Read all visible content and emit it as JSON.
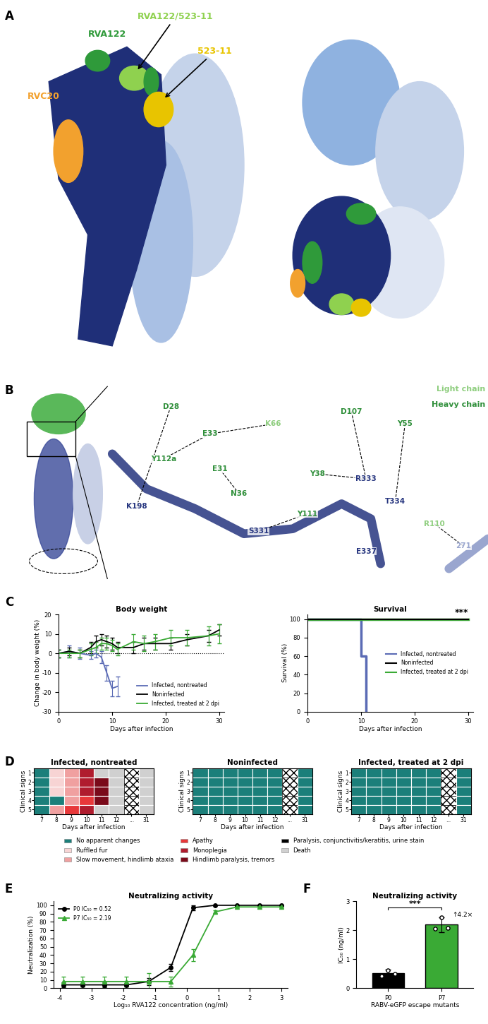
{
  "panel_labels": [
    "A",
    "B",
    "C",
    "D",
    "E",
    "F"
  ],
  "structure_panels": {
    "A": {
      "epitopes": [
        {
          "name": "RVA122/523-11",
          "color": "#8fd14f"
        },
        {
          "name": "RVA122",
          "color": "#2f9a3a"
        },
        {
          "name": "523-11",
          "color": "#e8c400"
        },
        {
          "name": "RVC20",
          "color": "#f2a12e"
        }
      ]
    },
    "B": {
      "chain_labels": [
        {
          "name": "Light chain",
          "color": "#8fce7f"
        },
        {
          "name": "Heavy chain",
          "color": "#2f8f3a"
        }
      ],
      "residues": [
        {
          "label": "D28",
          "color": "#2f8f3a"
        },
        {
          "label": "E33",
          "color": "#2f8f3a"
        },
        {
          "label": "K66",
          "color": "#8fce7f"
        },
        {
          "label": "Y112a",
          "color": "#2f8f3a"
        },
        {
          "label": "E31",
          "color": "#2f8f3a"
        },
        {
          "label": "N36",
          "color": "#2f8f3a"
        },
        {
          "label": "D107",
          "color": "#2f8f3a"
        },
        {
          "label": "Y55",
          "color": "#2f8f3a"
        },
        {
          "label": "Y38",
          "color": "#2f8f3a"
        },
        {
          "label": "R333",
          "color": "#26357f"
        },
        {
          "label": "Y111",
          "color": "#2f8f3a"
        },
        {
          "label": "S331",
          "color": "#26357f"
        },
        {
          "label": "T334",
          "color": "#26357f"
        },
        {
          "label": "E337",
          "color": "#26357f"
        },
        {
          "label": "K198",
          "color": "#26357f"
        },
        {
          "label": "R110",
          "color": "#8fce7f"
        },
        {
          "label": "271",
          "color": "#9aa6cf"
        }
      ]
    }
  },
  "chart_data": [
    {
      "type": "line",
      "title": "Body weight",
      "x_label": "Days after infection",
      "y_label": "Change in body weight (%)",
      "xlim": [
        0,
        31
      ],
      "xticks": [
        0,
        10,
        20,
        30
      ],
      "ylim": [
        -30,
        20
      ],
      "yticks": [
        -30,
        -20,
        -10,
        0,
        10,
        20
      ],
      "baseline": 0,
      "legend": "lower right",
      "series": [
        {
          "name": "Infected, nontreated",
          "color": "#5b6bb5",
          "x": [
            0,
            2,
            4,
            6,
            7,
            8,
            9,
            10,
            11
          ],
          "values": [
            0,
            1,
            0,
            -1,
            0,
            -2,
            -10,
            -18,
            -17
          ],
          "errors": [
            2,
            3,
            3,
            2,
            2,
            3,
            4,
            4,
            5
          ]
        },
        {
          "name": "Noninfected",
          "color": "#000000",
          "x": [
            0,
            2,
            4,
            6,
            7,
            8,
            9,
            10,
            11,
            14,
            16,
            18,
            21,
            24,
            28,
            30
          ],
          "values": [
            0,
            1,
            0,
            3,
            6,
            7,
            6,
            5,
            3,
            3,
            5,
            5,
            5,
            7,
            9,
            12
          ],
          "errors": [
            2,
            2,
            2,
            3,
            3,
            3,
            3,
            3,
            3,
            3,
            3,
            3,
            3,
            3,
            3,
            3
          ]
        },
        {
          "name": "Infected, treated at 2 dpi",
          "color": "#3aaa35",
          "x": [
            0,
            2,
            4,
            6,
            7,
            8,
            9,
            10,
            11,
            14,
            16,
            18,
            21,
            24,
            28,
            30
          ],
          "values": [
            0,
            0,
            0,
            2,
            3,
            5,
            5,
            4,
            2,
            6,
            5,
            6,
            8,
            8,
            9,
            10
          ],
          "errors": [
            2,
            2,
            2,
            3,
            3,
            3,
            3,
            3,
            3,
            4,
            4,
            4,
            4,
            4,
            5,
            5
          ]
        }
      ]
    },
    {
      "type": "step",
      "title": "Survival",
      "x_label": "Days after infection",
      "y_label": "Survival (%)",
      "xlim": [
        0,
        31
      ],
      "xticks": [
        0,
        10,
        20,
        30
      ],
      "ylim": [
        0,
        105
      ],
      "yticks": [
        0,
        20,
        40,
        60,
        80,
        100
      ],
      "annotation": "***",
      "legend": "center right",
      "series": [
        {
          "name": "Infected, nontreated",
          "color": "#5b6bb5",
          "x": [
            0,
            10,
            11
          ],
          "values": [
            100,
            60,
            0
          ]
        },
        {
          "name": "Noninfected",
          "color": "#000000",
          "x": [
            0,
            30
          ],
          "values": [
            100,
            100
          ]
        },
        {
          "name": "Infected, treated at 2 dpi",
          "color": "#3aaa35",
          "x": [
            0,
            30
          ],
          "values": [
            100,
            100
          ]
        }
      ]
    },
    {
      "type": "heatmap",
      "title": "Infected, nontreated",
      "x_label": "Days after infection",
      "y_label": "Clinical signs",
      "x": [
        "7",
        "8",
        "9",
        "10",
        "11",
        "12",
        "...",
        "31"
      ],
      "y": [
        "1",
        "2",
        "3",
        "4",
        "5"
      ],
      "cells": [
        [
          0,
          1,
          2,
          4,
          7,
          7,
          null,
          7
        ],
        [
          0,
          1,
          2,
          4,
          5,
          7,
          null,
          7
        ],
        [
          0,
          1,
          2,
          4,
          5,
          7,
          null,
          7
        ],
        [
          0,
          0,
          2,
          3,
          5,
          7,
          null,
          7
        ],
        [
          0,
          2,
          3,
          4,
          7,
          7,
          null,
          7
        ]
      ]
    },
    {
      "type": "heatmap",
      "title": "Noninfected",
      "x_label": "Days after infection",
      "y_label": "Clinical signs",
      "x": [
        "7",
        "8",
        "9",
        "10",
        "11",
        "12",
        "...",
        "31"
      ],
      "y": [
        "1",
        "2",
        "3",
        "4",
        "5"
      ],
      "cells": [
        [
          0,
          0,
          0,
          0,
          0,
          0,
          null,
          0
        ],
        [
          0,
          0,
          0,
          0,
          0,
          0,
          null,
          0
        ],
        [
          0,
          0,
          0,
          0,
          0,
          0,
          null,
          0
        ],
        [
          0,
          0,
          0,
          0,
          0,
          0,
          null,
          0
        ],
        [
          0,
          0,
          0,
          0,
          0,
          0,
          null,
          0
        ]
      ]
    },
    {
      "type": "heatmap",
      "title": "Infected, treated at 2 dpi",
      "x_label": "Days after infection",
      "y_label": "Clinical signs",
      "x": [
        "7",
        "8",
        "9",
        "10",
        "11",
        "12",
        "...",
        "31"
      ],
      "y": [
        "1",
        "2",
        "3",
        "4",
        "5"
      ],
      "cells": [
        [
          0,
          0,
          0,
          0,
          0,
          0,
          null,
          0
        ],
        [
          0,
          0,
          0,
          0,
          0,
          0,
          null,
          0
        ],
        [
          0,
          0,
          0,
          0,
          0,
          0,
          null,
          0
        ],
        [
          0,
          0,
          0,
          0,
          0,
          0,
          null,
          0
        ],
        [
          0,
          0,
          0,
          0,
          0,
          0,
          null,
          0
        ]
      ]
    },
    {
      "type": "legend",
      "items": [
        {
          "name": "No apparent changes",
          "color": "#1b7f7a"
        },
        {
          "name": "Ruffled fur",
          "color": "#f7d4d4"
        },
        {
          "name": "Slow movement, hindlimb ataxia",
          "color": "#f0a0a0"
        },
        {
          "name": "Apathy",
          "color": "#e8383a"
        },
        {
          "name": "Monoplegia",
          "color": "#b01c2e"
        },
        {
          "name": "Hindlimb paralysis, tremors",
          "color": "#7a0a1a"
        },
        {
          "name": "Paralysis, conjunctivitis/keratitis, urine stain",
          "color": "#000000"
        },
        {
          "name": "Death",
          "color": "#d0d0d0"
        }
      ]
    },
    {
      "type": "line",
      "title": "Neutralizing activity",
      "x_label": "Log₁₀ RVA122 concentration (ng/ml)",
      "y_label": "Neutralization (%)",
      "xlim": [
        -4.2,
        3.2
      ],
      "xticks": [
        -4,
        -3,
        -2,
        -1,
        0,
        1,
        2,
        3
      ],
      "ylim": [
        0,
        105
      ],
      "yticks": [
        0,
        10,
        20,
        30,
        40,
        50,
        60,
        70,
        80,
        90,
        100
      ],
      "legend": "upper left",
      "series": [
        {
          "name": "P0 IC₅₀ = 0.52",
          "color": "#000000",
          "marker": "circle",
          "x": [
            -3.9,
            -3.3,
            -2.6,
            -1.9,
            -1.2,
            -0.5,
            0.2,
            0.9,
            1.6,
            2.3,
            3.0
          ],
          "values": [
            4,
            4,
            4,
            4,
            8,
            25,
            97,
            100,
            100,
            100,
            100
          ],
          "errors": [
            3,
            2,
            3,
            2,
            4,
            4,
            3,
            0,
            0,
            0,
            0
          ]
        },
        {
          "name": "P7 IC₅₀ = 2.19",
          "color": "#3aaa35",
          "marker": "triangle",
          "x": [
            -3.9,
            -3.3,
            -2.6,
            -1.9,
            -1.2,
            -0.5,
            0.2,
            0.9,
            1.6,
            2.3,
            3.0
          ],
          "values": [
            8,
            8,
            8,
            8,
            8,
            8,
            40,
            92,
            98,
            98,
            98
          ],
          "errors": [
            6,
            6,
            6,
            6,
            10,
            6,
            7,
            2,
            1,
            1,
            1
          ]
        }
      ]
    },
    {
      "type": "bar",
      "title": "Neutralizing activity",
      "x_label": "RABV-eGFP escape mutants",
      "y_label": "IC₅₀ (ng/ml)",
      "categories": [
        "P0",
        "P7"
      ],
      "values": [
        0.52,
        2.19
      ],
      "colors": [
        "#000000",
        "#3aaa35"
      ],
      "errors": [
        0.12,
        0.25
      ],
      "points": [
        [
          0.42,
          0.62,
          0.5
        ],
        [
          2.05,
          2.45,
          2.07
        ]
      ],
      "ylim": [
        0,
        3
      ],
      "yticks": [
        0,
        1,
        2,
        3
      ],
      "annotations": [
        "***",
        "↑4.2×"
      ]
    }
  ]
}
